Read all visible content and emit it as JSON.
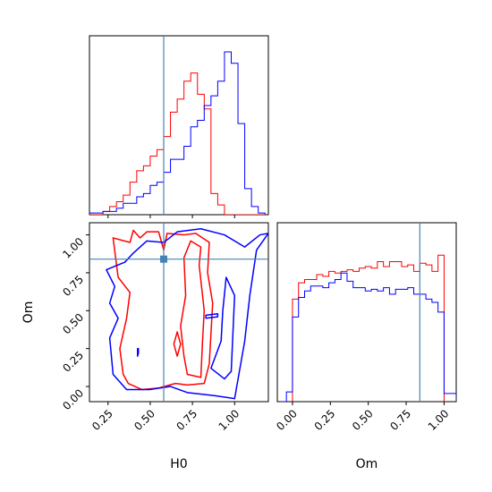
{
  "chart_data": {
    "type": "corner",
    "parameters": [
      "H0",
      "Om"
    ],
    "xlabel": "H0",
    "ylabel": "Om",
    "xlabel_om": "Om",
    "h0_range": [
      0.14,
      1.2
    ],
    "om_range": [
      -0.1,
      1.08
    ],
    "h0_ticks": [
      "0.25",
      "0.50",
      "0.75",
      "1.00"
    ],
    "om_ticks": [
      "0.00",
      "0.25",
      "0.50",
      "0.75",
      "1.00"
    ],
    "truth": {
      "H0": 0.58,
      "Om": 0.84
    },
    "colors": {
      "red": "#ff0000",
      "blue": "#0000ff",
      "truth": "#4682b4"
    },
    "series": [
      {
        "color": "red",
        "h0_hist": {
          "edges": [
            0.14,
            0.18,
            0.22,
            0.26,
            0.3,
            0.34,
            0.38,
            0.42,
            0.46,
            0.5,
            0.54,
            0.58,
            0.62,
            0.66,
            0.7,
            0.74,
            0.78,
            0.82,
            0.86,
            0.9,
            0.94,
            0.98,
            1.02,
            1.06,
            1.1,
            1.14,
            1.18
          ],
          "counts": [
            0,
            0,
            0.02,
            0.05,
            0.08,
            0.12,
            0.2,
            0.27,
            0.3,
            0.36,
            0.4,
            0.48,
            0.63,
            0.71,
            0.82,
            0.87,
            0.74,
            0.65,
            0.13,
            0.06,
            0,
            0,
            0,
            0,
            0,
            0
          ]
        },
        "om_hist": {
          "edges": [
            0.0,
            0.04,
            0.08,
            0.12,
            0.16,
            0.2,
            0.24,
            0.28,
            0.32,
            0.36,
            0.4,
            0.44,
            0.48,
            0.52,
            0.56,
            0.6,
            0.64,
            0.68,
            0.72,
            0.76,
            0.8,
            0.84,
            0.88,
            0.92,
            0.96,
            1.0
          ],
          "counts": [
            0.63,
            0.73,
            0.75,
            0.75,
            0.78,
            0.77,
            0.8,
            0.79,
            0.8,
            0.81,
            0.8,
            0.82,
            0.83,
            0.82,
            0.86,
            0.83,
            0.86,
            0.86,
            0.83,
            0.84,
            0.8,
            0.85,
            0.84,
            0.8,
            0.9
          ]
        },
        "contours": [
          [
            [
              0.37,
              0.02
            ],
            [
              0.45,
              -0.02
            ],
            [
              0.55,
              -0.01
            ],
            [
              0.65,
              0.02
            ],
            [
              0.72,
              0.01
            ],
            [
              0.82,
              0.02
            ],
            [
              0.85,
              0.15
            ],
            [
              0.86,
              0.35
            ],
            [
              0.87,
              0.55
            ],
            [
              0.84,
              0.75
            ],
            [
              0.85,
              0.95
            ],
            [
              0.77,
              1.01
            ],
            [
              0.7,
              1.0
            ],
            [
              0.6,
              1.01
            ],
            [
              0.58,
              0.9
            ],
            [
              0.55,
              1.02
            ],
            [
              0.48,
              1.02
            ],
            [
              0.44,
              0.98
            ],
            [
              0.4,
              1.03
            ],
            [
              0.38,
              0.95
            ],
            [
              0.28,
              0.98
            ],
            [
              0.31,
              0.72
            ],
            [
              0.38,
              0.62
            ],
            [
              0.36,
              0.45
            ],
            [
              0.32,
              0.25
            ],
            [
              0.34,
              0.08
            ],
            [
              0.37,
              0.02
            ]
          ],
          [
            [
              0.72,
              0.08
            ],
            [
              0.8,
              0.06
            ],
            [
              0.81,
              0.3
            ],
            [
              0.82,
              0.5
            ],
            [
              0.79,
              0.8
            ],
            [
              0.8,
              0.92
            ],
            [
              0.74,
              0.96
            ],
            [
              0.7,
              0.85
            ],
            [
              0.71,
              0.6
            ],
            [
              0.68,
              0.4
            ],
            [
              0.7,
              0.2
            ],
            [
              0.72,
              0.08
            ]
          ],
          [
            [
              0.66,
              0.2
            ],
            [
              0.68,
              0.28
            ],
            [
              0.66,
              0.36
            ],
            [
              0.64,
              0.28
            ],
            [
              0.66,
              0.2
            ]
          ]
        ]
      },
      {
        "color": "blue",
        "h0_hist": {
          "edges": [
            0.14,
            0.18,
            0.22,
            0.26,
            0.3,
            0.34,
            0.38,
            0.42,
            0.46,
            0.5,
            0.54,
            0.58,
            0.62,
            0.66,
            0.7,
            0.74,
            0.78,
            0.82,
            0.86,
            0.9,
            0.94,
            0.98,
            1.02,
            1.06,
            1.1,
            1.14,
            1.18
          ],
          "counts": [
            0.01,
            0.01,
            0.02,
            0.02,
            0.04,
            0.07,
            0.07,
            0.11,
            0.13,
            0.18,
            0.2,
            0.26,
            0.34,
            0.34,
            0.42,
            0.54,
            0.58,
            0.67,
            0.73,
            0.82,
            1.0,
            0.93,
            0.56,
            0.16,
            0.05,
            0.01
          ]
        },
        "om_hist": {
          "edges": [
            -0.08,
            -0.04,
            0.0,
            0.04,
            0.08,
            0.12,
            0.16,
            0.2,
            0.24,
            0.28,
            0.32,
            0.36,
            0.4,
            0.44,
            0.48,
            0.52,
            0.56,
            0.6,
            0.64,
            0.68,
            0.72,
            0.76,
            0.8,
            0.84,
            0.88,
            0.92,
            0.96,
            1.0,
            1.04,
            1.08
          ],
          "counts": [
            0,
            0.06,
            0.52,
            0.64,
            0.68,
            0.71,
            0.71,
            0.7,
            0.73,
            0.75,
            0.79,
            0.74,
            0.7,
            0.7,
            0.68,
            0.69,
            0.68,
            0.7,
            0.66,
            0.69,
            0.69,
            0.7,
            0.66,
            0.66,
            0.63,
            0.61,
            0.55,
            0.05,
            0.05
          ]
        },
        "contours": [
          [
            [
              0.28,
              0.08
            ],
            [
              0.36,
              -0.02
            ],
            [
              0.5,
              -0.02
            ],
            [
              0.62,
              0.0
            ],
            [
              0.72,
              -0.04
            ],
            [
              0.88,
              -0.06
            ],
            [
              1.0,
              -0.08
            ],
            [
              1.06,
              0.3
            ],
            [
              1.09,
              0.6
            ],
            [
              1.13,
              0.9
            ],
            [
              1.2,
              1.01
            ],
            [
              1.15,
              1.0
            ],
            [
              1.06,
              0.92
            ],
            [
              0.94,
              1.0
            ],
            [
              0.8,
              1.04
            ],
            [
              0.66,
              1.02
            ],
            [
              0.58,
              0.95
            ],
            [
              0.48,
              0.96
            ],
            [
              0.4,
              0.88
            ],
            [
              0.35,
              0.82
            ],
            [
              0.24,
              0.77
            ],
            [
              0.29,
              0.66
            ],
            [
              0.26,
              0.55
            ],
            [
              0.31,
              0.45
            ],
            [
              0.26,
              0.32
            ],
            [
              0.28,
              0.08
            ]
          ],
          [
            [
              0.86,
              0.12
            ],
            [
              0.94,
              0.05
            ],
            [
              0.98,
              0.1
            ],
            [
              0.99,
              0.35
            ],
            [
              1.0,
              0.6
            ],
            [
              0.95,
              0.72
            ],
            [
              0.93,
              0.5
            ],
            [
              0.92,
              0.3
            ],
            [
              0.86,
              0.12
            ]
          ],
          [
            [
              0.83,
              0.45
            ],
            [
              0.9,
              0.46
            ],
            [
              0.9,
              0.48
            ],
            [
              0.83,
              0.47
            ],
            [
              0.83,
              0.45
            ]
          ],
          [
            [
              0.425,
              0.2
            ],
            [
              0.43,
              0.22
            ],
            [
              0.43,
              0.25
            ],
            [
              0.425,
              0.25
            ],
            [
              0.425,
              0.2
            ]
          ]
        ]
      }
    ]
  }
}
